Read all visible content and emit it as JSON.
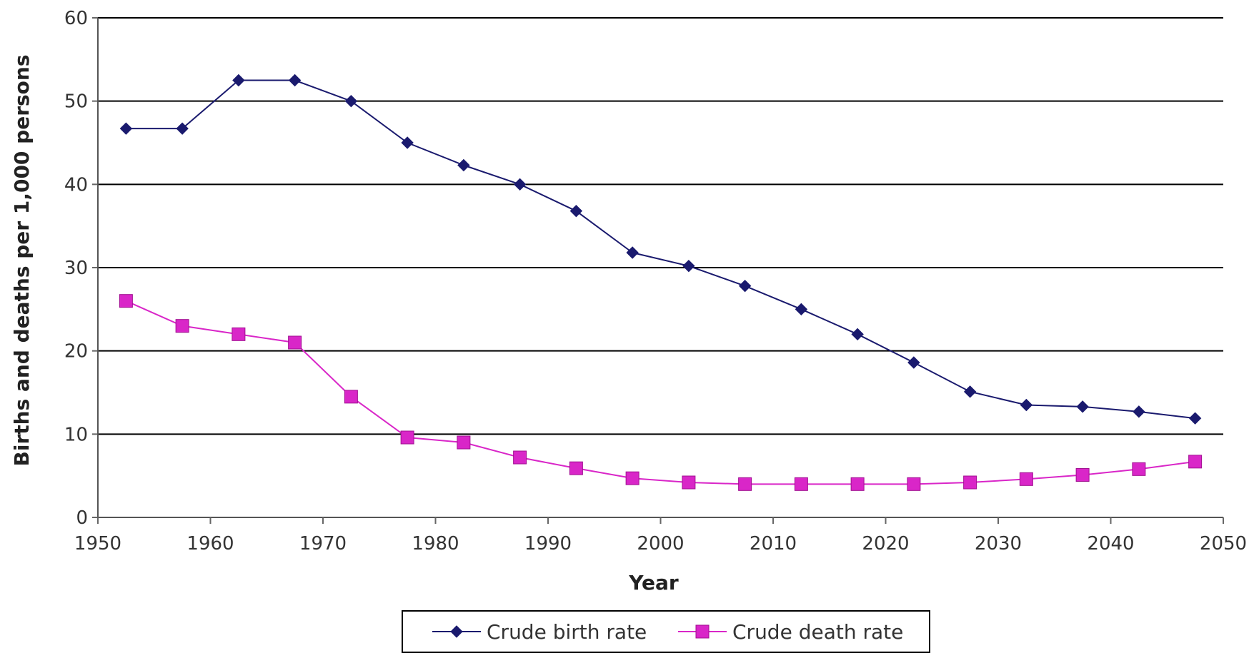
{
  "chart_data": {
    "type": "line",
    "title": "",
    "xlabel": "Year",
    "ylabel": "Births and deaths per 1,000 persons",
    "xlim": [
      1950,
      2050
    ],
    "ylim": [
      0,
      60
    ],
    "x_ticks": [
      "1950",
      "1960",
      "1970",
      "1980",
      "1990",
      "2000",
      "2010",
      "2020",
      "2030",
      "2040",
      "2050"
    ],
    "y_ticks": [
      "0",
      "10",
      "20",
      "30",
      "40",
      "50",
      "60"
    ],
    "grid": "horizontal",
    "legend": "bottom",
    "x": [
      1952.5,
      1957.5,
      1962.5,
      1967.5,
      1972.5,
      1977.5,
      1982.5,
      1987.5,
      1992.5,
      1997.5,
      2002.5,
      2007.5,
      2012.5,
      2017.5,
      2022.5,
      2027.5,
      2032.5,
      2037.5,
      2042.5,
      2047.5
    ],
    "series": [
      {
        "name": "Crude birth rate",
        "color": "#1a1a6e",
        "marker": "diamond",
        "values": [
          46.7,
          46.7,
          52.5,
          52.5,
          50.0,
          45.0,
          42.3,
          40.0,
          36.8,
          31.8,
          30.2,
          27.8,
          25.0,
          22.0,
          18.6,
          15.1,
          13.5,
          13.3,
          12.7,
          11.9
        ]
      },
      {
        "name": "Crude death rate",
        "color": "#d926c8",
        "marker": "square",
        "values": [
          26.0,
          23.0,
          22.0,
          21.0,
          14.5,
          9.6,
          9.0,
          7.2,
          5.9,
          4.7,
          4.2,
          4.0,
          4.0,
          4.0,
          4.0,
          4.2,
          4.6,
          5.1,
          5.8,
          6.7
        ]
      }
    ]
  }
}
